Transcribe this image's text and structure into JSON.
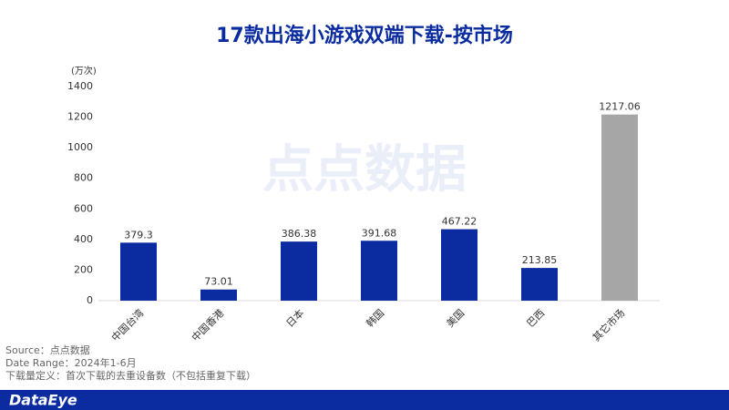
{
  "chart_data": {
    "type": "bar",
    "title": "17款出海小游戏双端下载-按市场",
    "y_unit": "(万次)",
    "categories": [
      "中国台湾",
      "中国香港",
      "日本",
      "韩国",
      "美国",
      "巴西",
      "其它市场"
    ],
    "values": [
      379.3,
      73.01,
      386.38,
      391.68,
      467.22,
      213.85,
      1217.06
    ],
    "colors": [
      "#0b2ca0",
      "#0b2ca0",
      "#0b2ca0",
      "#0b2ca0",
      "#0b2ca0",
      "#0b2ca0",
      "#a6a6a6"
    ],
    "ylim": [
      0,
      1400
    ],
    "yticks": [
      0,
      200,
      400,
      600,
      800,
      1000,
      1200,
      1400
    ],
    "grid": false,
    "watermark": "点点数据",
    "notes": [
      "Source：点点数据",
      "Date Range：2024年1-6月",
      "下载量定义：首次下载的去重设备数（不包括重复下载）"
    ],
    "brand": "DataEye"
  }
}
